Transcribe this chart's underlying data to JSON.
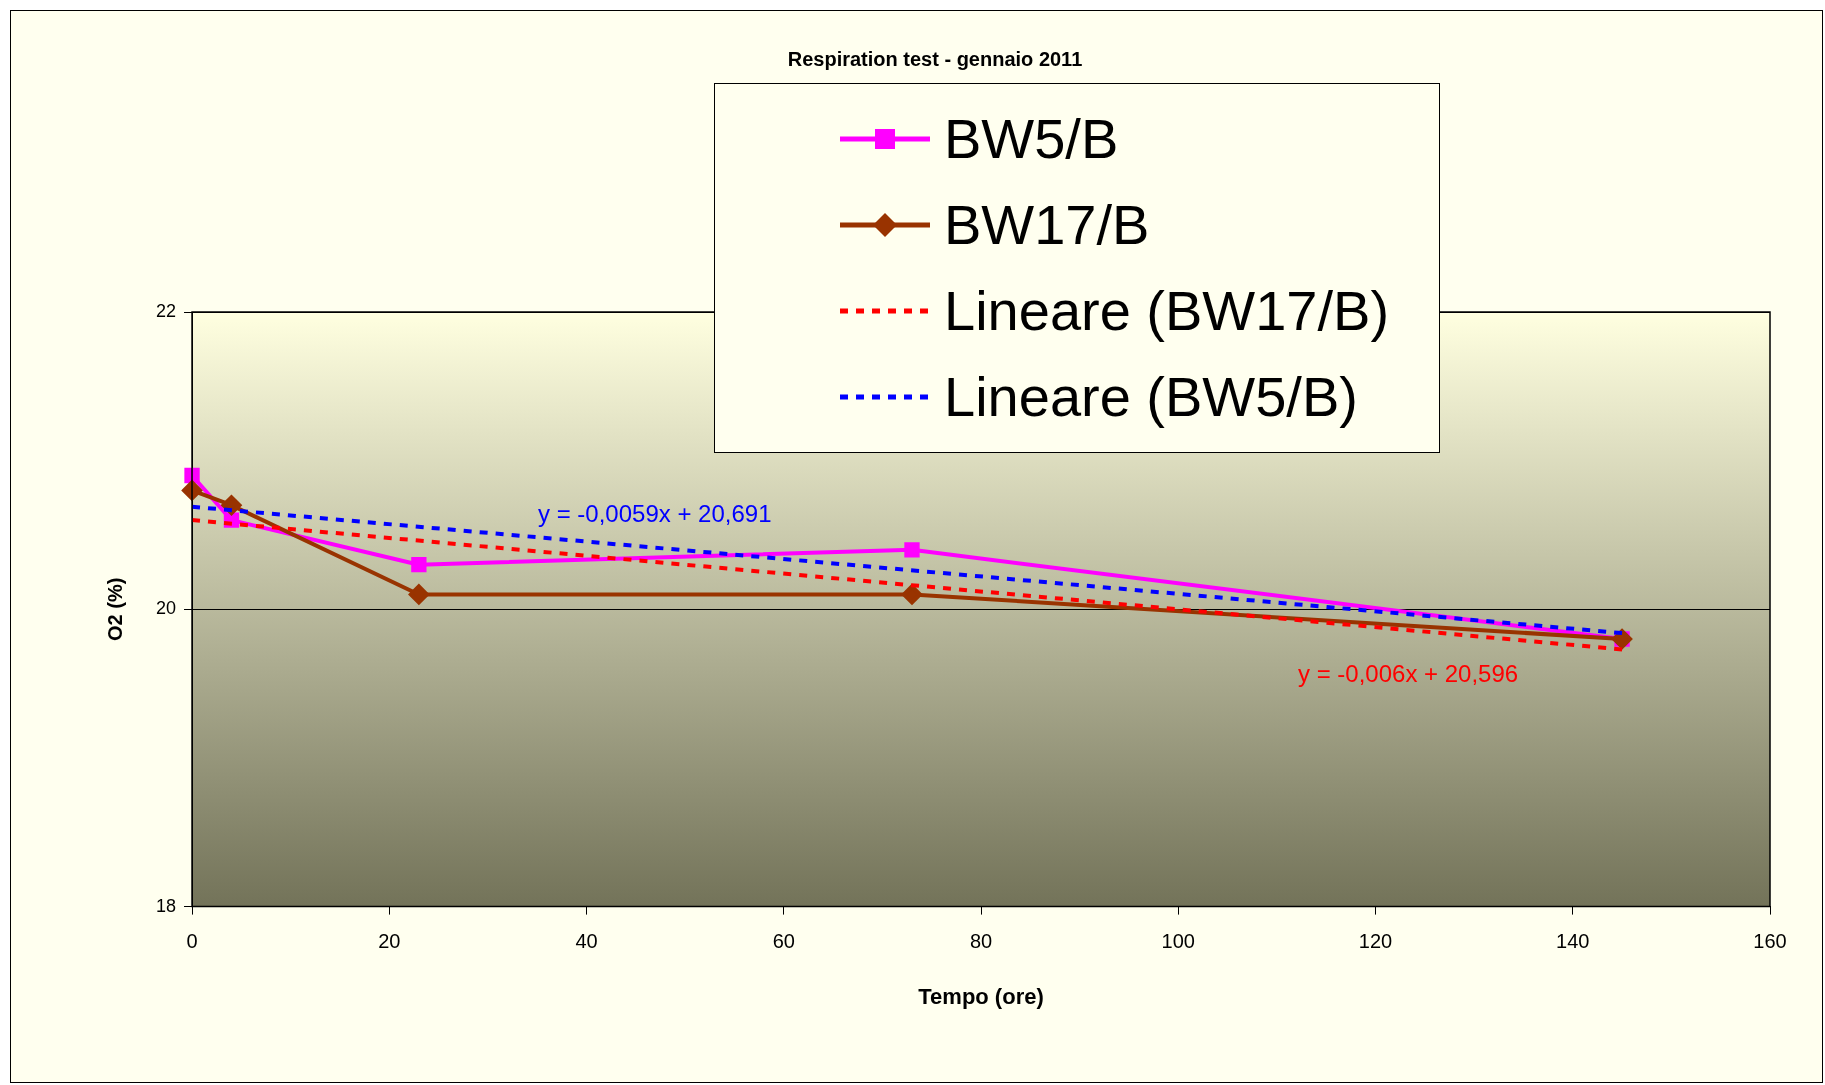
{
  "chart_data": {
    "type": "line",
    "title": "Respiration test - gennaio 2011",
    "xlabel": "Tempo (ore)",
    "ylabel": "O2 (%)",
    "x": [
      0,
      4,
      23,
      73,
      145
    ],
    "series": [
      {
        "name": "BW5/B",
        "color": "#ff00ff",
        "values": [
          20.9,
          20.6,
          20.3,
          20.4,
          19.8
        ],
        "marker": "square",
        "line_style": "solid"
      },
      {
        "name": "BW17/B",
        "color": "#993300",
        "values": [
          20.8,
          20.7,
          20.1,
          20.1,
          19.8
        ],
        "marker": "diamond",
        "line_style": "solid"
      },
      {
        "name": "Lineare (BW17/B)",
        "color": "#ff0000",
        "values": [
          20.6,
          null,
          null,
          null,
          19.73
        ],
        "marker": "none",
        "line_style": "dashed"
      },
      {
        "name": "Lineare (BW5/B)",
        "color": "#0000ff",
        "values": [
          20.69,
          null,
          null,
          null,
          19.84
        ],
        "marker": "none",
        "line_style": "dashed"
      }
    ],
    "xlim": [
      0,
      160
    ],
    "xticks": [
      0,
      20,
      40,
      60,
      80,
      100,
      120,
      140,
      160
    ],
    "ylim": [
      18,
      22
    ],
    "yticks": [
      18,
      20,
      22
    ],
    "grid": "y",
    "legend": "top right",
    "annotations": [
      "y = -0,0059x + 20,691",
      "y = -0,006x + 20,596"
    ]
  }
}
